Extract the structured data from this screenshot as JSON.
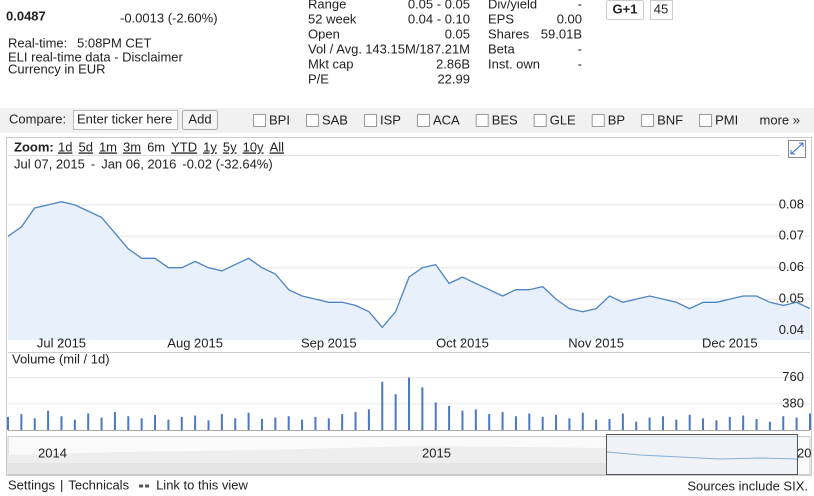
{
  "quote": {
    "price": "0.0487",
    "change": "-0.0013 (-2.60%)",
    "realtime_label": "Real-time:",
    "realtime_time": "5:08PM CET",
    "disclaimer": "ELI real-time data - Disclaimer",
    "currency": "Currency in EUR"
  },
  "stats": {
    "left": [
      [
        "Range",
        "0.05 - 0.05"
      ],
      [
        "52 week",
        "0.04 - 0.10"
      ],
      [
        "Open",
        "0.05"
      ],
      [
        "Vol / Avg.",
        "143.15M/187.21M"
      ],
      [
        "Mkt cap",
        "2.86B"
      ],
      [
        "P/E",
        "22.99"
      ]
    ],
    "right": [
      [
        "Div/yield",
        "-"
      ],
      [
        "EPS",
        "0.00"
      ],
      [
        "Shares",
        "59.01B"
      ],
      [
        "Beta",
        "-"
      ],
      [
        "Inst. own",
        "-"
      ]
    ]
  },
  "social": {
    "button": "G+1",
    "count": "45"
  },
  "compare": {
    "label": "Compare:",
    "placeholder": "Enter ticker here",
    "button": "Add",
    "tickers": [
      "BPI",
      "SAB",
      "ISP",
      "ACA",
      "BES",
      "GLE",
      "BP",
      "BNF",
      "PMI"
    ],
    "more": "more »"
  },
  "zoom": {
    "label": "Zoom:",
    "options": [
      "1d",
      "5d",
      "1m",
      "3m",
      "6m",
      "YTD",
      "1y",
      "5y",
      "10y",
      "All"
    ]
  },
  "range": {
    "start": "Jul 07, 2015",
    "separator": "-",
    "end": "Jan 06, 2016",
    "change": "-0.02 (-32.64%)"
  },
  "chart_data": [
    {
      "type": "line",
      "categories": [
        null,
        null,
        null,
        null,
        "Jul 2015",
        null,
        null,
        null,
        null,
        null,
        null,
        null,
        null,
        null,
        "Aug 2015",
        null,
        null,
        null,
        null,
        null,
        null,
        null,
        null,
        null,
        "Sep 2015",
        null,
        null,
        null,
        null,
        null,
        null,
        null,
        null,
        null,
        "Oct 2015",
        null,
        null,
        null,
        null,
        null,
        null,
        null,
        null,
        null,
        "Nov 2015",
        null,
        null,
        null,
        null,
        null,
        null,
        null,
        null,
        null,
        "Dec 2015",
        null,
        null,
        null,
        null,
        null,
        null
      ],
      "values": [
        0.07,
        0.073,
        0.079,
        0.08,
        0.081,
        0.08,
        0.078,
        0.076,
        0.071,
        0.066,
        0.063,
        0.063,
        0.06,
        0.06,
        0.062,
        0.06,
        0.059,
        0.061,
        0.063,
        0.06,
        0.058,
        0.053,
        0.051,
        0.05,
        0.049,
        0.049,
        0.048,
        0.046,
        0.041,
        0.046,
        0.057,
        0.06,
        0.061,
        0.055,
        0.057,
        0.055,
        0.053,
        0.051,
        0.053,
        0.053,
        0.054,
        0.05,
        0.047,
        0.046,
        0.047,
        0.051,
        0.049,
        0.05,
        0.051,
        0.05,
        0.049,
        0.047,
        0.049,
        0.049,
        0.05,
        0.051,
        0.051,
        0.049,
        0.048,
        0.049,
        0.047
      ],
      "color": "#4f84c4",
      "ylim": [
        0.037,
        0.086
      ],
      "yticks": [
        0.08,
        0.07,
        0.06,
        0.05,
        0.04
      ],
      "grid": true
    },
    {
      "type": "bar",
      "title": "Volume (mil / 1d)",
      "values": [
        190,
        230,
        170,
        280,
        200,
        150,
        240,
        180,
        260,
        200,
        170,
        220,
        150,
        190,
        210,
        140,
        230,
        170,
        250,
        160,
        180,
        200,
        150,
        190,
        170,
        230,
        260,
        300,
        700,
        520,
        760,
        620,
        400,
        350,
        280,
        300,
        230,
        260,
        200,
        240,
        190,
        220,
        170,
        250,
        150,
        160,
        240,
        120,
        180,
        200,
        150,
        220,
        170,
        140,
        190,
        210,
        160,
        120,
        200,
        180,
        240
      ],
      "color": "#4a78c2",
      "ylim": [
        0,
        900
      ],
      "yticks": [
        380,
        760
      ],
      "grid": true
    }
  ],
  "navigator": {
    "labels": [
      "2014",
      "2015",
      "20"
    ]
  },
  "footer": {
    "links": [
      "Settings",
      "Technicals",
      "Link to this view"
    ],
    "separator": "|",
    "source": "Sources include SIX."
  }
}
